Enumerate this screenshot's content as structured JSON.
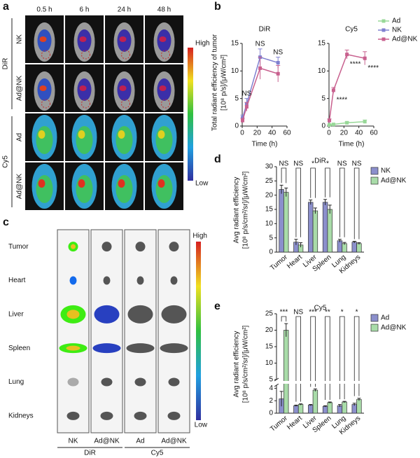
{
  "panel_a": {
    "label": "a",
    "times": [
      "0.5 h",
      "6 h",
      "24 h",
      "48 h"
    ],
    "groups": [
      "DiR",
      "Cy5"
    ],
    "rows": [
      "NK",
      "Ad@NK",
      "Ad",
      "Ad@NK"
    ],
    "scale": [
      "High",
      "Low"
    ]
  },
  "panel_c": {
    "label": "c",
    "organs": [
      "Tumor",
      "Heart",
      "Liver",
      "Spleen",
      "Lung",
      "Kidneys"
    ],
    "columns": [
      "NK",
      "Ad@NK",
      "Ad",
      "Ad@NK"
    ],
    "groups": [
      "DiR",
      "Cy5"
    ],
    "scale": [
      "High",
      "Low"
    ]
  },
  "chart_data": [
    {
      "type": "line",
      "panel_label": "b",
      "title": "DiR",
      "x_label": "Time (h)",
      "y_label": [
        "Total radiant efficiency of tumor",
        "[10⁸ p/s]/[μW/cm²]"
      ],
      "x": [
        0.5,
        6,
        24,
        48
      ],
      "xlim": [
        0,
        60
      ],
      "xticks": [
        0,
        20,
        40,
        60
      ],
      "ylim": [
        0,
        15
      ],
      "yticks": [
        0,
        5,
        10,
        15
      ],
      "series": [
        {
          "name": "NK",
          "color": "#7f80d0",
          "values": [
            1.5,
            4,
            12.5,
            11.5
          ],
          "errors": [
            0.5,
            1,
            1.5,
            1
          ]
        },
        {
          "name": "Ad@NK",
          "color": "#c8608e",
          "values": [
            1,
            3.5,
            10.5,
            9.5
          ],
          "errors": [
            0.4,
            0.8,
            2,
            1.5
          ]
        }
      ],
      "annotations": [
        null,
        "NS",
        "NS",
        "NS"
      ]
    },
    {
      "type": "line",
      "title": "Cy5",
      "x_label": "Time (h)",
      "x": [
        0.5,
        6,
        24,
        48
      ],
      "xlim": [
        0,
        60
      ],
      "xticks": [
        0,
        20,
        40,
        60
      ],
      "ylim": [
        0,
        15
      ],
      "yticks": [
        0,
        5,
        10,
        15
      ],
      "series": [
        {
          "name": "Ad",
          "color": "#98d898",
          "values": [
            0.2,
            0.3,
            0.6,
            0.8
          ],
          "errors": [
            0.1,
            0.1,
            0.2,
            0.3
          ]
        },
        {
          "name": "Ad@NK",
          "color": "#c8608e",
          "values": [
            1,
            6.5,
            13,
            12.3
          ],
          "errors": [
            0.3,
            0.5,
            0.8,
            1.2
          ]
        }
      ],
      "annotations": [
        null,
        "****",
        "****",
        "****"
      ]
    },
    {
      "type": "bar",
      "panel_label": "d",
      "title": "DiR",
      "y_label": [
        "Avg radiant efficiency",
        "[10⁸ p/s/cm²/sr]/[μW/cm²]"
      ],
      "categories": [
        "Tumor",
        "Heart",
        "Liver",
        "Spleen",
        "Lung",
        "Kidneys"
      ],
      "ylim": [
        0,
        30
      ],
      "yticks": [
        0,
        5,
        10,
        15,
        20,
        25,
        30
      ],
      "series": [
        {
          "name": "NK",
          "color": "#8b8fcc",
          "values": [
            22,
            3.5,
            17.5,
            17.5,
            4,
            3.5
          ],
          "errors": [
            1.5,
            1,
            0.8,
            1,
            0.5,
            0.3
          ]
        },
        {
          "name": "Ad@NK",
          "color": "#a9dca9",
          "values": [
            21,
            2.5,
            14.5,
            15,
            3,
            3
          ],
          "errors": [
            1.5,
            0.8,
            1,
            1.5,
            0.4,
            0.3
          ]
        }
      ],
      "annotations": [
        "NS",
        "NS",
        "*",
        "*",
        "NS",
        "NS"
      ]
    },
    {
      "type": "bar",
      "panel_label": "e",
      "title": "Cy5",
      "y_label": [
        "Avg radiant efficiency",
        "[10⁸ p/s/cm²/sr]/[μW/cm²]"
      ],
      "categories": [
        "Tumor",
        "Heart",
        "Liver",
        "Spleen",
        "Lung",
        "Kidneys"
      ],
      "ylim_lower": [
        0,
        4.5
      ],
      "ylim_upper": [
        5,
        25
      ],
      "yticks": [
        0,
        2,
        4,
        5,
        10,
        15,
        20,
        25
      ],
      "series": [
        {
          "name": "Ad",
          "color": "#8b8fcc",
          "values": [
            2.3,
            1.2,
            1.3,
            1.1,
            1.2,
            1.4
          ],
          "errors": [
            1.2,
            0.1,
            0.1,
            0.1,
            0.2,
            0.2
          ]
        },
        {
          "name": "Ad@NK",
          "color": "#a9dca9",
          "values": [
            20,
            1.4,
            3.7,
            1.7,
            1.8,
            2.2
          ],
          "errors": [
            2,
            0.1,
            0.2,
            0.1,
            0.1,
            0.2
          ]
        }
      ],
      "annotations": [
        "***",
        "NS",
        "***",
        "**",
        "*",
        "*"
      ]
    }
  ]
}
